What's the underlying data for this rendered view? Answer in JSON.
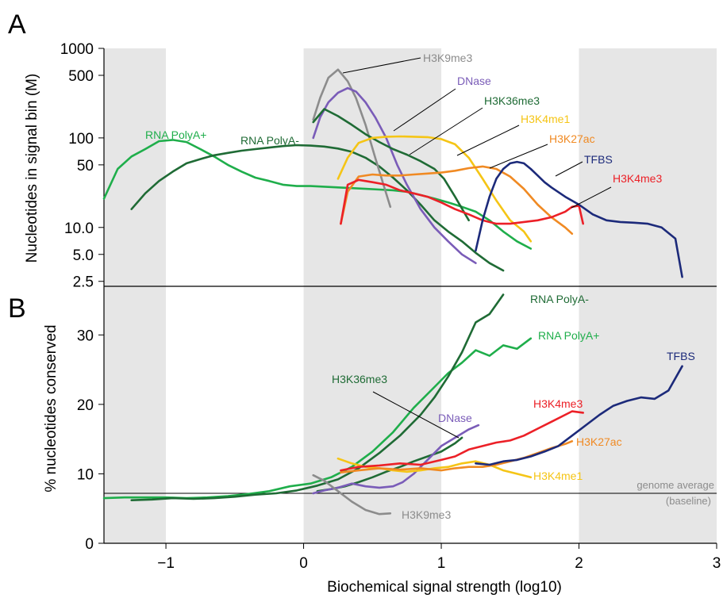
{
  "figure": {
    "xlabel": "Biochemical signal strength (log10)",
    "x_ticks": [
      -1,
      0,
      1,
      2,
      3
    ],
    "x_tick_labels": [
      "−1",
      "0",
      "1",
      "2",
      "3"
    ],
    "shaded_bands": [
      [
        -1.45,
        -1.0
      ],
      [
        0.0,
        1.0
      ],
      [
        2.0,
        3.0
      ]
    ],
    "colors": {
      "H3K9me3": "#8c8c8c",
      "DNase": "#7a5cb8",
      "H3K36me3": "#1f6b35",
      "RNA PolyA-": "#1f6b35",
      "RNA PolyA+": "#1fae4b",
      "H3K4me1": "#f5c516",
      "H3K27ac": "#f08a23",
      "TFBS": "#1c2a7a",
      "H3K4me3": "#ec2027",
      "shade": "#e6e6e6"
    }
  },
  "chart_data": [
    {
      "panel_label": "A",
      "type": "line",
      "ylabel": "Nucleotides in signal bin (M)",
      "yscale": "log",
      "ylim": [
        2.2,
        1000
      ],
      "xlim": [
        -1.45,
        3.0
      ],
      "y_ticks": [
        2.5,
        5.0,
        10.0,
        50,
        100,
        500,
        1000
      ],
      "y_tick_labels": [
        "2.5",
        "5.0",
        "10.0",
        "50",
        "100",
        "500",
        "1000"
      ],
      "series": [
        {
          "name": "RNA PolyA+",
          "x": [
            -1.45,
            -1.35,
            -1.25,
            -1.15,
            -1.05,
            -0.95,
            -0.85,
            -0.75,
            -0.65,
            -0.55,
            -0.45,
            -0.35,
            -0.25,
            -0.15,
            -0.05,
            0.05,
            0.15,
            0.25,
            0.35,
            0.45,
            0.55,
            0.65,
            0.75,
            0.85,
            0.95,
            1.05,
            1.15,
            1.25,
            1.35,
            1.45,
            1.55,
            1.65
          ],
          "y": [
            21,
            45,
            62,
            75,
            92,
            95,
            90,
            75,
            62,
            50,
            42,
            36,
            33,
            30,
            29,
            29,
            28.5,
            28,
            27.5,
            27,
            26.5,
            26,
            25,
            23,
            21,
            19,
            17,
            15,
            12,
            9,
            7,
            5.8
          ]
        },
        {
          "name": "RNA PolyA-",
          "x": [
            -1.25,
            -1.15,
            -1.05,
            -0.95,
            -0.85,
            -0.75,
            -0.65,
            -0.55,
            -0.45,
            -0.35,
            -0.25,
            -0.15,
            -0.05,
            0.05,
            0.15,
            0.25,
            0.35,
            0.45,
            0.55,
            0.65,
            0.75,
            0.85,
            0.95,
            1.05,
            1.15,
            1.25,
            1.35,
            1.45
          ],
          "y": [
            16,
            24,
            33,
            42,
            52,
            58,
            64,
            68,
            72,
            75,
            78,
            81,
            83,
            82,
            80,
            76,
            70,
            60,
            48,
            36,
            26,
            18,
            12,
            9,
            7,
            5.2,
            4,
            3.3
          ]
        },
        {
          "name": "H3K9me3",
          "x": [
            0.07,
            0.12,
            0.18,
            0.25,
            0.32,
            0.38,
            0.45,
            0.52,
            0.58,
            0.63
          ],
          "y": [
            160,
            280,
            470,
            580,
            430,
            280,
            140,
            60,
            30,
            17
          ]
        },
        {
          "name": "DNase",
          "x": [
            0.07,
            0.12,
            0.18,
            0.25,
            0.32,
            0.38,
            0.45,
            0.52,
            0.6,
            0.68,
            0.75,
            0.85,
            0.95,
            1.05,
            1.15,
            1.25
          ],
          "y": [
            100,
            170,
            250,
            320,
            360,
            330,
            250,
            170,
            100,
            50,
            30,
            16,
            10,
            7,
            5,
            4
          ]
        },
        {
          "name": "H3K36me3",
          "x": [
            0.07,
            0.15,
            0.25,
            0.35,
            0.45,
            0.55,
            0.65,
            0.75,
            0.85,
            0.95,
            1.02,
            1.1,
            1.2
          ],
          "y": [
            150,
            210,
            175,
            140,
            110,
            90,
            75,
            65,
            55,
            45,
            35,
            22,
            12
          ]
        },
        {
          "name": "H3K4me1",
          "x": [
            0.25,
            0.32,
            0.4,
            0.5,
            0.6,
            0.7,
            0.8,
            0.9,
            1.0,
            1.1,
            1.2,
            1.3,
            1.4,
            1.5,
            1.6,
            1.65
          ],
          "y": [
            35,
            60,
            88,
            100,
            103,
            104,
            103,
            102,
            97,
            85,
            60,
            35,
            20,
            12,
            9,
            7
          ]
        },
        {
          "name": "H3K27ac",
          "x": [
            0.27,
            0.32,
            0.4,
            0.5,
            0.6,
            0.7,
            0.8,
            0.9,
            1.0,
            1.1,
            1.2,
            1.3,
            1.4,
            1.5,
            1.6,
            1.7,
            1.8,
            1.9,
            1.95
          ],
          "y": [
            11,
            25,
            37,
            39,
            38,
            38,
            39,
            40,
            41,
            43,
            46,
            48,
            45,
            37,
            27,
            18,
            13,
            10,
            8.5
          ]
        },
        {
          "name": "H3K4me3",
          "x": [
            0.27,
            0.32,
            0.4,
            0.5,
            0.6,
            0.7,
            0.8,
            0.9,
            1.0,
            1.1,
            1.2,
            1.3,
            1.4,
            1.5,
            1.6,
            1.7,
            1.8,
            1.9,
            1.95,
            2.0,
            2.03
          ],
          "y": [
            11,
            30,
            34,
            32,
            30,
            26,
            24,
            22,
            19,
            16,
            14,
            12,
            11,
            11,
            11.5,
            12,
            13,
            15,
            17,
            17.5,
            11
          ]
        },
        {
          "name": "TFBS",
          "x": [
            1.25,
            1.3,
            1.35,
            1.4,
            1.45,
            1.5,
            1.55,
            1.6,
            1.65,
            1.7,
            1.75,
            1.8,
            1.9,
            2.0,
            2.1,
            2.2,
            2.3,
            2.4,
            2.5,
            2.6,
            2.7,
            2.75
          ],
          "y": [
            5.5,
            12,
            22,
            35,
            45,
            52,
            54,
            52,
            45,
            38,
            32,
            28,
            22,
            18,
            14,
            12,
            11.5,
            11.3,
            11,
            10,
            7.5,
            2.8
          ]
        }
      ],
      "labels": [
        "H3K9me3",
        "DNase",
        "H3K36me3",
        "H3K4me1",
        "H3K27ac",
        "TFBS",
        "H3K4me3",
        "RNA PolyA+",
        "RNA PolyA-"
      ]
    },
    {
      "panel_label": "B",
      "type": "line",
      "ylabel": "% nucleotides conserved",
      "ylim": [
        0,
        37
      ],
      "xlim": [
        -1.45,
        3.0
      ],
      "y_ticks": [
        0,
        10,
        20,
        30
      ],
      "y_tick_labels": [
        "0",
        "10",
        "20",
        "30"
      ],
      "reference_line": {
        "y": 7.2,
        "label": "genome average",
        "sublabel": "(baseline)"
      },
      "series": [
        {
          "name": "RNA PolyA+",
          "x": [
            -1.45,
            -1.3,
            -1.15,
            -1.0,
            -0.85,
            -0.7,
            -0.55,
            -0.4,
            -0.25,
            -0.1,
            0.05,
            0.2,
            0.35,
            0.5,
            0.65,
            0.8,
            0.95,
            1.05,
            1.15,
            1.25,
            1.35,
            1.45,
            1.55,
            1.65
          ],
          "y": [
            6.5,
            6.6,
            6.6,
            6.6,
            6.5,
            6.6,
            6.8,
            7.1,
            7.5,
            8.2,
            8.6,
            9.5,
            11.0,
            13.2,
            16.0,
            19.5,
            22.5,
            24.5,
            26.0,
            27.8,
            27.0,
            28.5,
            28.0,
            29.5
          ]
        },
        {
          "name": "RNA PolyA-",
          "x": [
            -1.25,
            -1.1,
            -0.95,
            -0.8,
            -0.65,
            -0.5,
            -0.35,
            -0.2,
            -0.05,
            0.1,
            0.25,
            0.4,
            0.55,
            0.7,
            0.85,
            0.95,
            1.05,
            1.15,
            1.25,
            1.35,
            1.45
          ],
          "y": [
            6.2,
            6.3,
            6.5,
            6.4,
            6.5,
            6.7,
            7.0,
            7.2,
            7.6,
            8.3,
            9.2,
            10.8,
            13.0,
            15.5,
            18.5,
            21.0,
            24.0,
            27.5,
            31.8,
            33.0,
            35.8
          ]
        },
        {
          "name": "H3K36me3",
          "x": [
            0.1,
            0.2,
            0.3,
            0.4,
            0.5,
            0.6,
            0.7,
            0.8,
            0.9,
            1.0,
            1.1,
            1.15
          ],
          "y": [
            7.5,
            7.8,
            8.2,
            8.8,
            9.5,
            10.3,
            11.0,
            11.8,
            12.5,
            13.2,
            14.4,
            15.2
          ]
        },
        {
          "name": "DNase",
          "x": [
            0.07,
            0.15,
            0.25,
            0.35,
            0.45,
            0.55,
            0.65,
            0.72,
            0.8,
            0.9,
            1.0,
            1.1,
            1.2,
            1.27
          ],
          "y": [
            7.2,
            7.6,
            8.0,
            8.6,
            8.2,
            8.0,
            8.2,
            8.8,
            10.0,
            12.0,
            14.0,
            15.2,
            16.4,
            17.0
          ]
        },
        {
          "name": "H3K9me3",
          "x": [
            0.07,
            0.15,
            0.25,
            0.35,
            0.45,
            0.55,
            0.63
          ],
          "y": [
            9.8,
            9.0,
            7.5,
            6.0,
            4.8,
            4.2,
            4.3
          ]
        },
        {
          "name": "H3K4me1",
          "x": [
            0.25,
            0.35,
            0.45,
            0.55,
            0.65,
            0.75,
            0.85,
            0.95,
            1.05,
            1.15,
            1.25,
            1.35,
            1.45,
            1.55,
            1.65
          ],
          "y": [
            12.2,
            11.5,
            11.0,
            10.8,
            10.5,
            10.3,
            10.5,
            10.8,
            11.0,
            11.5,
            11.8,
            11.3,
            10.5,
            10.0,
            9.5
          ]
        },
        {
          "name": "H3K27ac",
          "x": [
            0.27,
            0.4,
            0.55,
            0.7,
            0.85,
            1.0,
            1.1,
            1.2,
            1.3,
            1.4,
            1.5,
            1.6,
            1.7,
            1.8,
            1.9,
            1.95
          ],
          "y": [
            10.2,
            10.5,
            10.8,
            10.6,
            10.8,
            10.5,
            10.8,
            11.0,
            11.0,
            11.3,
            11.8,
            12.3,
            13.0,
            13.7,
            14.3,
            14.7
          ]
        },
        {
          "name": "H3K4me3",
          "x": [
            0.27,
            0.4,
            0.55,
            0.7,
            0.85,
            1.0,
            1.1,
            1.2,
            1.3,
            1.4,
            1.5,
            1.6,
            1.7,
            1.8,
            1.9,
            1.95,
            2.03
          ],
          "y": [
            10.5,
            11.0,
            11.2,
            11.5,
            11.3,
            12.0,
            12.5,
            13.5,
            14.0,
            14.5,
            14.8,
            15.5,
            16.5,
            17.5,
            18.5,
            19.0,
            18.8
          ]
        },
        {
          "name": "TFBS",
          "x": [
            1.25,
            1.35,
            1.45,
            1.55,
            1.65,
            1.75,
            1.85,
            1.95,
            2.05,
            2.15,
            2.25,
            2.35,
            2.45,
            2.55,
            2.65,
            2.75
          ],
          "y": [
            11.5,
            11.3,
            11.8,
            12.0,
            12.5,
            13.2,
            14.0,
            15.5,
            17.0,
            18.5,
            19.8,
            20.5,
            21.0,
            20.8,
            22.0,
            25.5
          ]
        }
      ],
      "labels": [
        "RNA PolyA-",
        "RNA PolyA+",
        "TFBS",
        "H3K36me3",
        "DNase",
        "H3K4me3",
        "H3K27ac",
        "H3K4me1",
        "H3K9me3"
      ]
    }
  ]
}
